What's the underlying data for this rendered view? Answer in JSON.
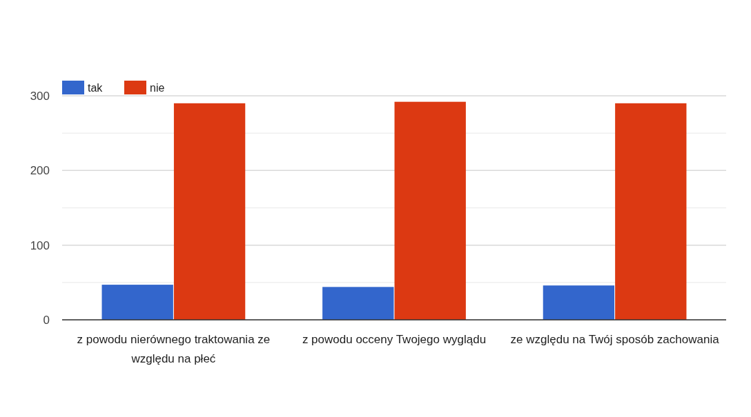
{
  "chart_data": {
    "type": "bar",
    "categories": [
      "z powodu nierównego traktowania ze względu na płeć",
      "z powodu occeny Twojego wyglądu",
      "ze względu na Twój sposób zachowania"
    ],
    "series": [
      {
        "name": "tak",
        "color": "#3366cc",
        "values": [
          47,
          44,
          46
        ]
      },
      {
        "name": "nie",
        "color": "#dc3912",
        "values": [
          290,
          292,
          290
        ]
      }
    ],
    "ylim": [
      0,
      300
    ],
    "yticks": [
      0,
      {
        "value": 50,
        "label": null
      },
      100,
      {
        "value": 150,
        "label": null
      },
      200,
      {
        "value": 250,
        "label": null
      },
      300
    ],
    "grid": "y",
    "legend": "top left"
  }
}
